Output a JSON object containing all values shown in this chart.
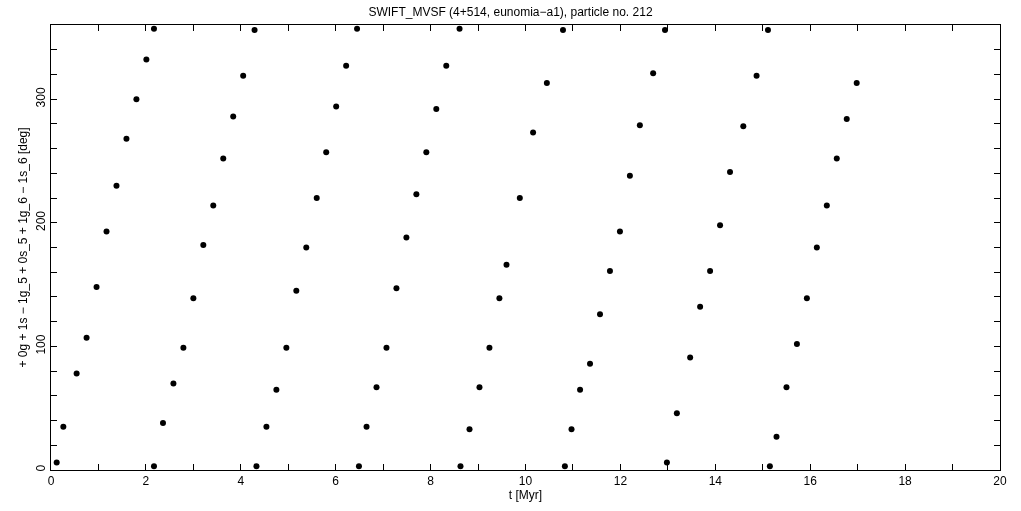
{
  "chart_data": {
    "type": "scatter",
    "title": "SWIFT_MVSF (4+514, eunomia−a1), particle no. 212",
    "xlabel": "t [Myr]",
    "ylabel": "+ 0g + 1s − 1g_5 + 0s_5 + 1g_6 − 1s_6 [deg]",
    "xlim": [
      0,
      20
    ],
    "ylim": [
      0,
      360
    ],
    "xticks": [
      0,
      {
        "value": 1,
        "label": null
      },
      2,
      {
        "value": 3,
        "label": null
      },
      4,
      {
        "value": 5,
        "label": null
      },
      6,
      {
        "value": 7,
        "label": null
      },
      8,
      {
        "value": 9,
        "label": null
      },
      10,
      {
        "value": 11,
        "label": null
      },
      12,
      {
        "value": 13,
        "label": null
      },
      14,
      {
        "value": 15,
        "label": null
      },
      16,
      {
        "value": 17,
        "label": null
      },
      18,
      {
        "value": 19,
        "label": null
      },
      20
    ],
    "yticks": [
      0,
      {
        "value": 20,
        "label": null
      },
      {
        "value": 40,
        "label": null
      },
      {
        "value": 60,
        "label": null
      },
      {
        "value": 80,
        "label": null
      },
      100,
      {
        "value": 120,
        "label": null
      },
      {
        "value": 140,
        "label": null
      },
      {
        "value": 160,
        "label": null
      },
      {
        "value": 180,
        "label": null
      },
      200,
      {
        "value": 220,
        "label": null
      },
      {
        "value": 240,
        "label": null
      },
      {
        "value": 260,
        "label": null
      },
      {
        "value": 280,
        "label": null
      },
      300,
      {
        "value": 320,
        "label": null
      },
      {
        "value": 340,
        "label": null
      }
    ],
    "marker": "circle",
    "series": [
      {
        "color": "#000000",
        "x": [
          0.12,
          0.26,
          0.54,
          0.75,
          0.96,
          1.17,
          1.38,
          1.59,
          1.8,
          2.01,
          2.17,
          2.17,
          2.36,
          2.58,
          2.79,
          3.0,
          3.21,
          3.42,
          3.63,
          3.84,
          4.05,
          4.29,
          4.33,
          4.54,
          4.75,
          4.96,
          5.17,
          5.38,
          5.6,
          5.8,
          6.01,
          6.22,
          6.45,
          6.49,
          6.65,
          6.86,
          7.07,
          7.28,
          7.49,
          7.7,
          7.91,
          8.12,
          8.33,
          8.61,
          8.63,
          8.82,
          9.03,
          9.24,
          9.45,
          9.6,
          9.88,
          10.16,
          10.45,
          10.79,
          10.83,
          10.97,
          11.15,
          11.36,
          11.57,
          11.78,
          11.99,
          12.2,
          12.41,
          12.69,
          12.94,
          12.98,
          13.19,
          13.47,
          13.68,
          13.89,
          14.1,
          14.31,
          14.59,
          14.87,
          15.11,
          15.15,
          15.29,
          15.5,
          15.72,
          15.93,
          16.14,
          16.35,
          16.56,
          16.77,
          16.98
        ],
        "values": [
          6,
          35,
          78,
          107,
          148,
          193,
          230,
          268,
          300,
          332,
          357,
          3,
          38,
          70,
          99,
          139,
          182,
          214,
          252,
          286,
          319,
          356,
          3,
          35,
          65,
          99,
          145,
          180,
          220,
          257,
          294,
          327,
          357,
          3,
          35,
          67,
          99,
          147,
          188,
          223,
          257,
          292,
          327,
          357,
          3,
          33,
          67,
          99,
          139,
          166,
          220,
          273,
          313,
          356,
          3,
          33,
          65,
          86,
          126,
          161,
          193,
          238,
          279,
          321,
          356,
          6,
          46,
          91,
          132,
          161,
          198,
          241,
          278,
          319,
          356,
          3,
          27,
          67,
          102,
          139,
          180,
          214,
          252,
          284,
          313
        ]
      }
    ]
  }
}
